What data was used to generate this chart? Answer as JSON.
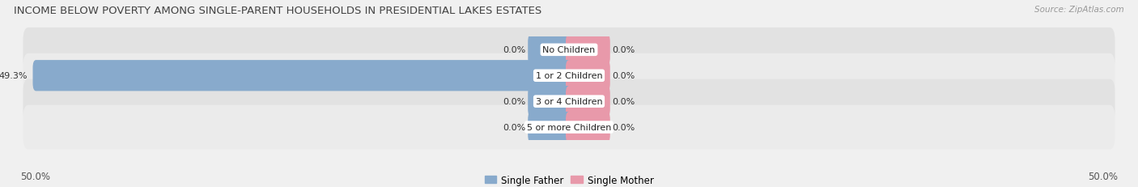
{
  "title": "INCOME BELOW POVERTY AMONG SINGLE-PARENT HOUSEHOLDS IN PRESIDENTIAL LAKES ESTATES",
  "source": "Source: ZipAtlas.com",
  "categories": [
    "No Children",
    "1 or 2 Children",
    "3 or 4 Children",
    "5 or more Children"
  ],
  "father_values": [
    0.0,
    49.3,
    0.0,
    0.0
  ],
  "mother_values": [
    0.0,
    0.0,
    0.0,
    0.0
  ],
  "max_val": 50.0,
  "father_color": "#88aacc",
  "mother_color": "#e899aa",
  "bar_bg_color": "#e2e2e2",
  "bar_bg_color2": "#ebebeb",
  "title_fontsize": 9.5,
  "source_fontsize": 7.5,
  "label_fontsize": 8,
  "value_fontsize": 8,
  "axis_label_fontsize": 8.5,
  "legend_fontsize": 8.5,
  "background_color": "#f0f0f0",
  "x_left_label": "50.0%",
  "x_right_label": "50.0%",
  "zero_bar_width": 3.5
}
